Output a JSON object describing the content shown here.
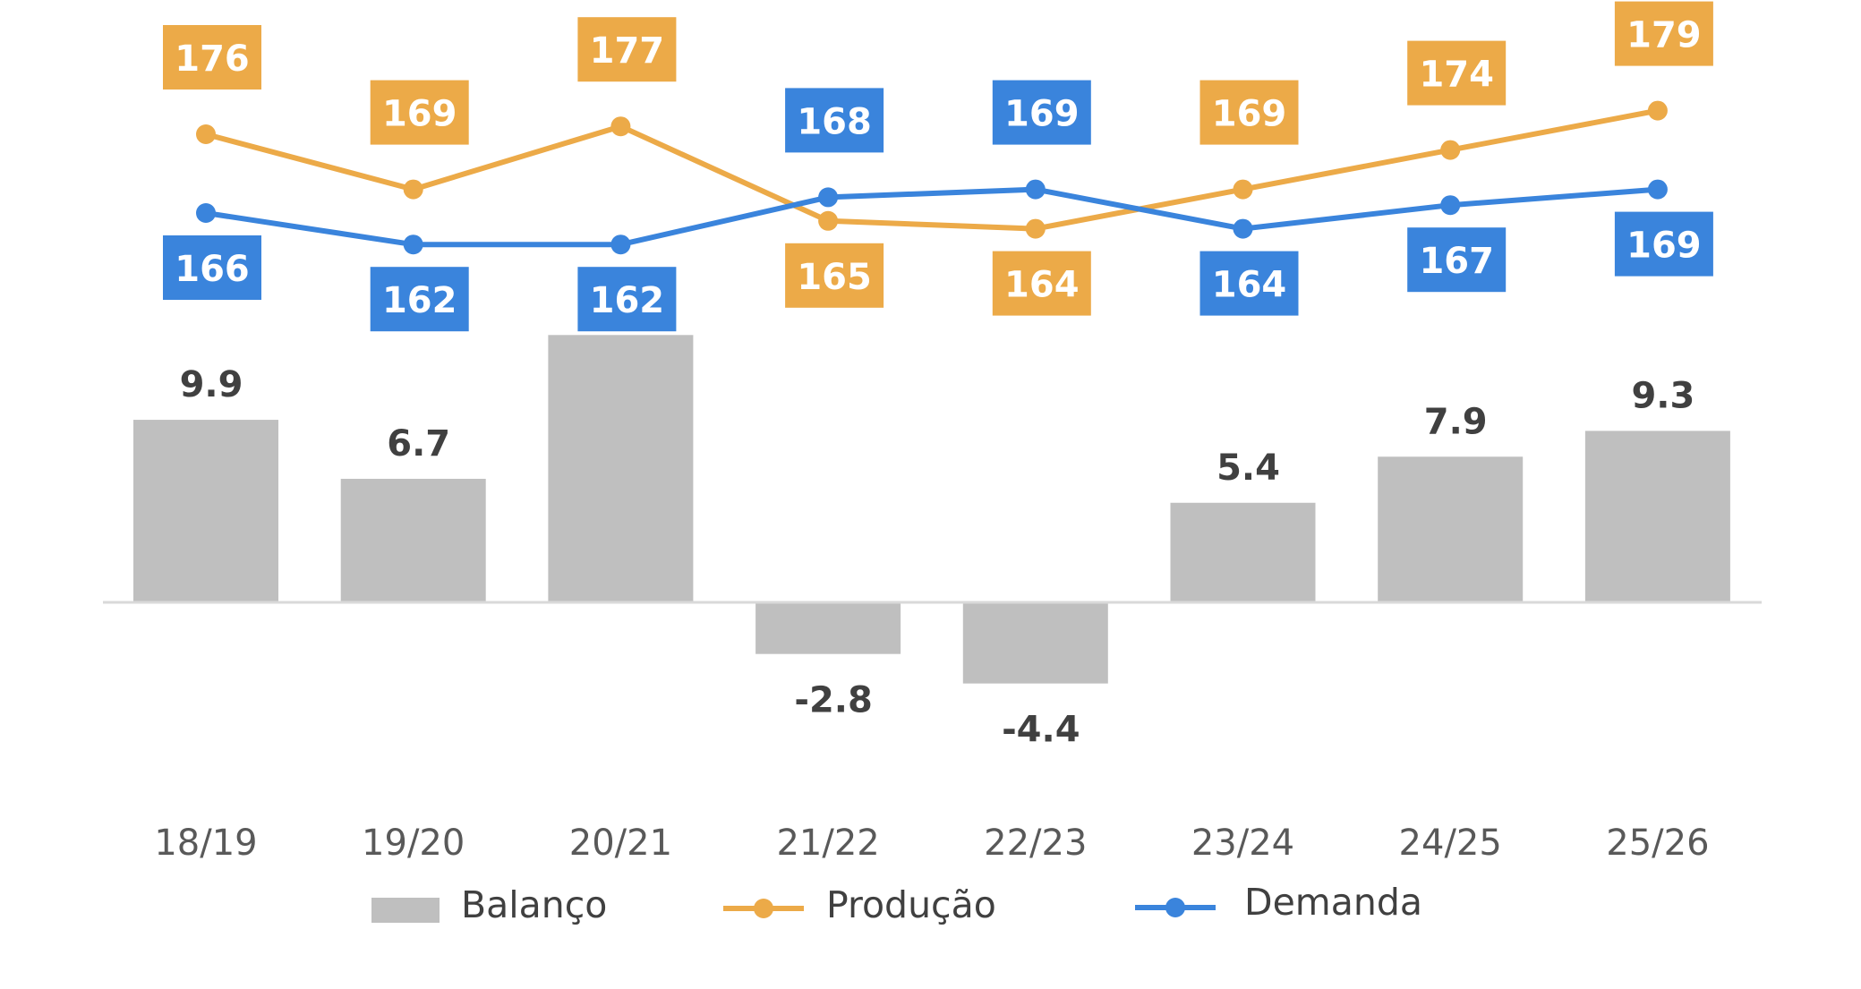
{
  "chart_data": {
    "type": "bar",
    "categories": [
      "18/19",
      "19/20",
      "20/21",
      "21/22",
      "22/23",
      "23/24",
      "24/25",
      "25/26"
    ],
    "series": [
      {
        "name": "Balanço",
        "type": "bar",
        "color": "#bfbfbf",
        "values": [
          9.9,
          6.7,
          14.5,
          -2.8,
          -4.4,
          5.4,
          7.9,
          9.3
        ]
      },
      {
        "name": "Produção",
        "type": "line",
        "color": "#ecaa48",
        "values": [
          176,
          169,
          177,
          165,
          164,
          169,
          174,
          179
        ]
      },
      {
        "name": "Demanda",
        "type": "line",
        "color": "#3a84dc",
        "values": [
          166,
          162,
          162,
          168,
          169,
          164,
          167,
          169
        ]
      }
    ],
    "legend_position": "bottom",
    "grid": false
  }
}
